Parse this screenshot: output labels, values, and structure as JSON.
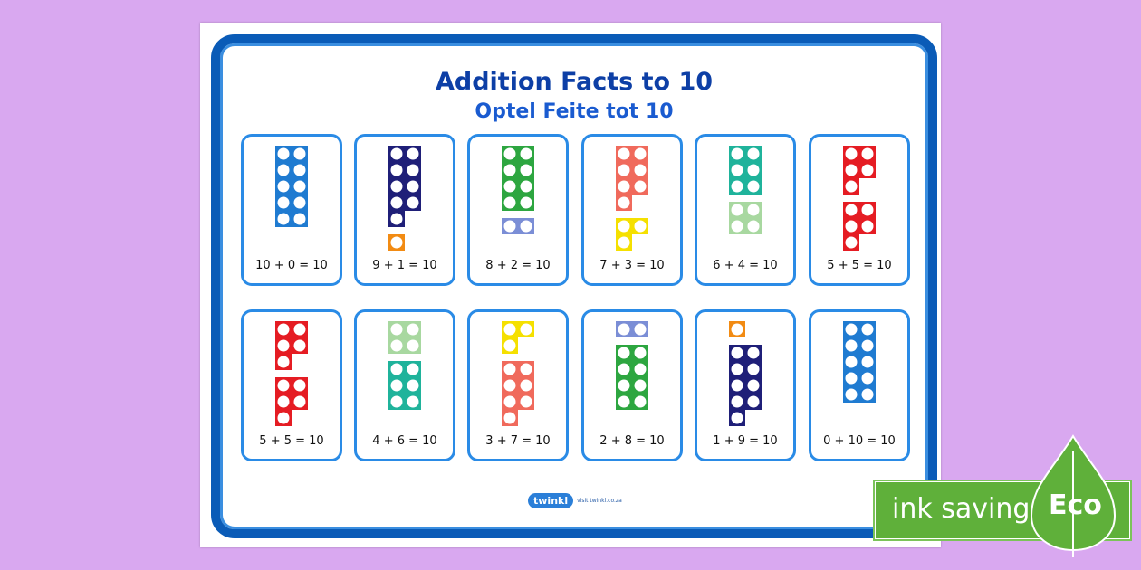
{
  "title": "Addition Facts to 10",
  "subtitle": "Optel Feite tot 10",
  "colors": {
    "background": "#d9a8f0",
    "frame": "#0a5bb7",
    "card_border": "#2a8be6",
    "n1": "#f28b13",
    "n2": "#7b8ed6",
    "n3": "#f5e000",
    "n4": "#a8d8a0",
    "n5": "#e51c23",
    "n6": "#1fb39b",
    "n7": "#f06a5c",
    "n8": "#2da640",
    "n9": "#1f1f78",
    "n10": "#1f7bd1"
  },
  "cards": [
    {
      "equation": "10 + 0 = 10",
      "a": 10,
      "b": 0
    },
    {
      "equation": "9 + 1 = 10",
      "a": 9,
      "b": 1
    },
    {
      "equation": "8 + 2 = 10",
      "a": 8,
      "b": 2
    },
    {
      "equation": "7 + 3 = 10",
      "a": 7,
      "b": 3
    },
    {
      "equation": "6 + 4 = 10",
      "a": 6,
      "b": 4
    },
    {
      "equation": "5 + 5 = 10",
      "a": 5,
      "b": 5
    },
    {
      "equation": "5 + 5 = 10",
      "a": 5,
      "b": 5
    },
    {
      "equation": "4 + 6 = 10",
      "a": 4,
      "b": 6
    },
    {
      "equation": "3 + 7 = 10",
      "a": 3,
      "b": 7
    },
    {
      "equation": "2 + 8 = 10",
      "a": 2,
      "b": 8
    },
    {
      "equation": "1 + 9 = 10",
      "a": 1,
      "b": 9
    },
    {
      "equation": "0 + 10 = 10",
      "a": 0,
      "b": 10
    }
  ],
  "logo": {
    "brand": "twinkl",
    "url": "visit twinkl.co.za"
  },
  "eco": {
    "label": "ink saving",
    "badge": "Eco"
  }
}
